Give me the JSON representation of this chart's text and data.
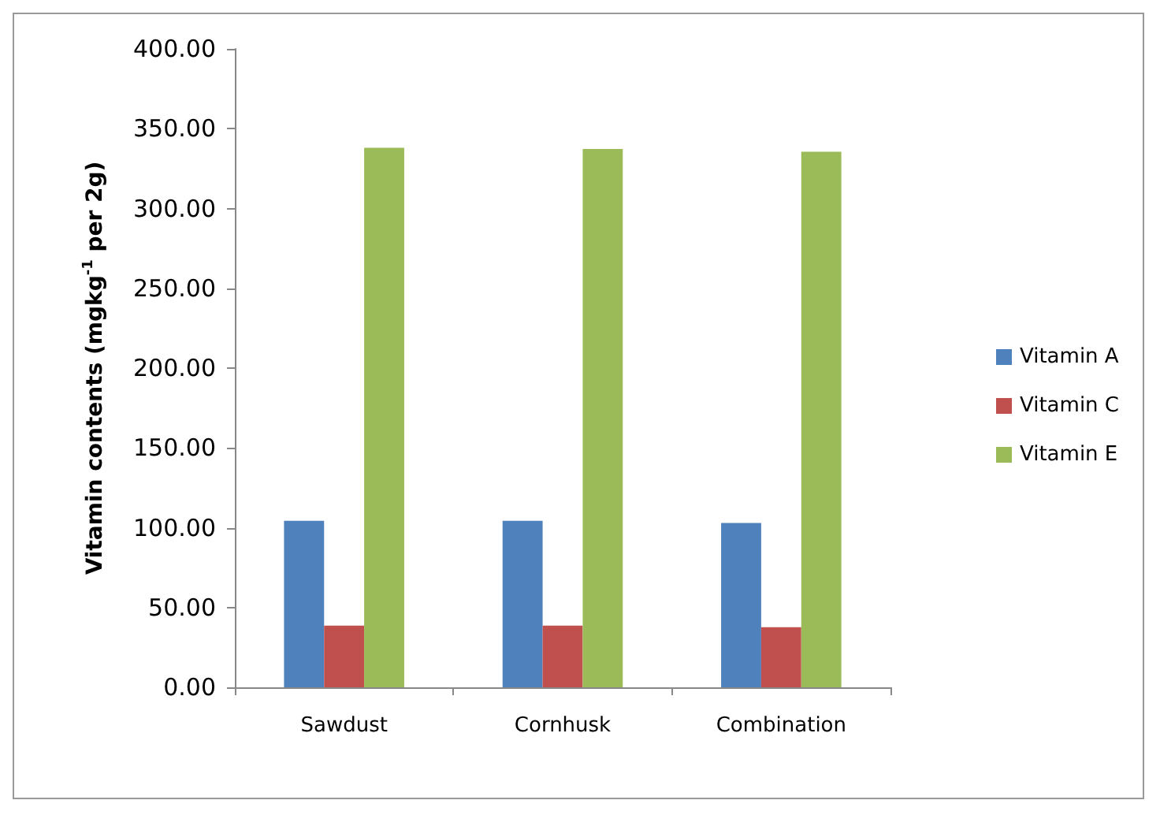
{
  "chart_data": {
    "type": "bar",
    "ylabel": "Vitamin contents (mgkg$^{-1}$ per 2g)",
    "categories": [
      "Sawdust",
      "Cornhusk",
      "Combination"
    ],
    "series": [
      {
        "name": "Vitamin A",
        "color": "#4f81bd",
        "values": [
          104.3,
          104.3,
          103
        ]
      },
      {
        "name": "Vitamin C",
        "color": "#c0504d",
        "values": [
          38.7,
          38.7,
          37.7
        ]
      },
      {
        "name": "Vitamin E",
        "color": "#9bbb59",
        "values": [
          338,
          337.3,
          335.6
        ]
      }
    ],
    "ylim": [
      0,
      400
    ],
    "yticks": [
      {
        "value": 0,
        "label": "0.00"
      },
      {
        "value": 50,
        "label": "50.00"
      },
      {
        "value": 100,
        "label": "100.00"
      },
      {
        "value": 150,
        "label": "150.00"
      },
      {
        "value": 200,
        "label": "200.00"
      },
      {
        "value": 250,
        "label": "250.00"
      },
      {
        "value": 300,
        "label": "300.00"
      },
      {
        "value": 350,
        "label": "350.00"
      },
      {
        "value": 400,
        "label": "400.00"
      }
    ],
    "grid": false,
    "legend": "right"
  }
}
